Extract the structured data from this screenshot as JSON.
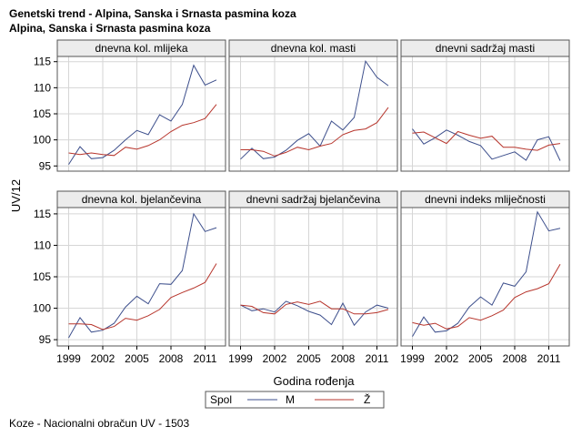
{
  "title_line1": "Genetski trend - Alpina, Sanska i Srnasta pasmina koza",
  "title_line2": "Alpina, Sanska i Srnasta pasmina koza",
  "footer": "Koze - Nacionalni obračun UV - 1503",
  "colors": {
    "M": "#3d4f8c",
    "Z": "#b7352c",
    "strip_bg": "#ececec",
    "grid": "#d6d6d6",
    "frame": "#555555"
  },
  "chart_data": {
    "type": "line",
    "xlabel": "Godina rođenja",
    "ylabel": "UV/12",
    "xlim": [
      1998,
      2012.8
    ],
    "ylim": [
      94,
      116
    ],
    "xticks": [
      1999,
      2002,
      2005,
      2008,
      2011
    ],
    "yticks": [
      95,
      100,
      105,
      110,
      115
    ],
    "grid": true,
    "legend": {
      "placement": "bottom",
      "title": "Spol",
      "entries": [
        "M",
        "Ž"
      ]
    },
    "x": [
      1999,
      2000,
      2001,
      2002,
      2003,
      2004,
      2005,
      2006,
      2007,
      2008,
      2009,
      2010,
      2011,
      2012
    ],
    "panels": [
      {
        "title": "dnevna kol. mlijeka",
        "series": [
          {
            "name": "M",
            "values": [
              95.3,
              98.7,
              96.4,
              96.6,
              98.0,
              100.0,
              101.8,
              101.0,
              104.8,
              103.6,
              106.8,
              114.3,
              110.5,
              111.5
            ]
          },
          {
            "name": "Ž",
            "values": [
              97.5,
              97.2,
              97.5,
              97.2,
              97.0,
              98.6,
              98.2,
              98.9,
              100.0,
              101.6,
              102.8,
              103.3,
              104.1,
              106.8
            ]
          }
        ]
      },
      {
        "title": "dnevna kol. masti",
        "series": [
          {
            "name": "M",
            "values": [
              96.3,
              98.4,
              96.4,
              96.7,
              98.0,
              99.9,
              101.2,
              98.8,
              103.6,
              101.9,
              104.3,
              115.1,
              112.0,
              110.4
            ]
          },
          {
            "name": "Ž",
            "values": [
              98.1,
              98.1,
              97.8,
              96.9,
              97.6,
              98.6,
              98.1,
              98.8,
              99.3,
              101.0,
              101.8,
              102.1,
              103.3,
              106.2
            ]
          }
        ]
      },
      {
        "title": "dnevni sadržaj masti",
        "series": [
          {
            "name": "M",
            "values": [
              102.1,
              99.2,
              100.4,
              101.9,
              100.9,
              99.7,
              98.9,
              96.3,
              97.0,
              97.7,
              96.1,
              100.0,
              100.6,
              96.0
            ]
          },
          {
            "name": "Ž",
            "values": [
              101.3,
              101.5,
              100.4,
              99.3,
              101.6,
              100.9,
              100.3,
              100.7,
              98.6,
              98.6,
              98.2,
              98.0,
              99.0,
              99.3
            ]
          }
        ]
      },
      {
        "title": "dnevna kol. bjelančevina",
        "series": [
          {
            "name": "M",
            "values": [
              95.3,
              98.5,
              96.2,
              96.5,
              97.6,
              100.2,
              101.9,
              100.7,
              103.9,
              103.8,
              106.0,
              115.0,
              112.2,
              112.8
            ]
          },
          {
            "name": "Ž",
            "values": [
              97.5,
              97.5,
              97.4,
              96.6,
              97.1,
              98.4,
              98.1,
              98.8,
              99.8,
              101.7,
              102.5,
              103.2,
              104.1,
              107.1
            ]
          }
        ]
      },
      {
        "title": "dnevni sadržaj bjelančevina",
        "series": [
          {
            "name": "M",
            "values": [
              100.5,
              99.6,
              99.9,
              99.4,
              101.1,
              100.4,
              99.5,
              98.9,
              97.4,
              100.8,
              97.3,
              99.4,
              100.5,
              100.0
            ]
          },
          {
            "name": "Ž",
            "values": [
              100.5,
              100.3,
              99.3,
              99.1,
              100.6,
              101.0,
              100.6,
              101.1,
              99.9,
              99.9,
              99.1,
              99.1,
              99.3,
              99.8
            ]
          }
        ]
      },
      {
        "title": "dnevni indeks mliječnosti",
        "series": [
          {
            "name": "M",
            "values": [
              95.5,
              98.6,
              96.2,
              96.4,
              97.6,
              100.2,
              101.8,
              100.5,
              104.0,
              103.5,
              105.8,
              115.3,
              112.3,
              112.7
            ]
          },
          {
            "name": "Ž",
            "values": [
              97.7,
              97.3,
              97.6,
              96.7,
              97.1,
              98.5,
              98.1,
              98.8,
              99.7,
              101.7,
              102.6,
              103.1,
              103.9,
              107.0
            ]
          }
        ]
      }
    ]
  }
}
